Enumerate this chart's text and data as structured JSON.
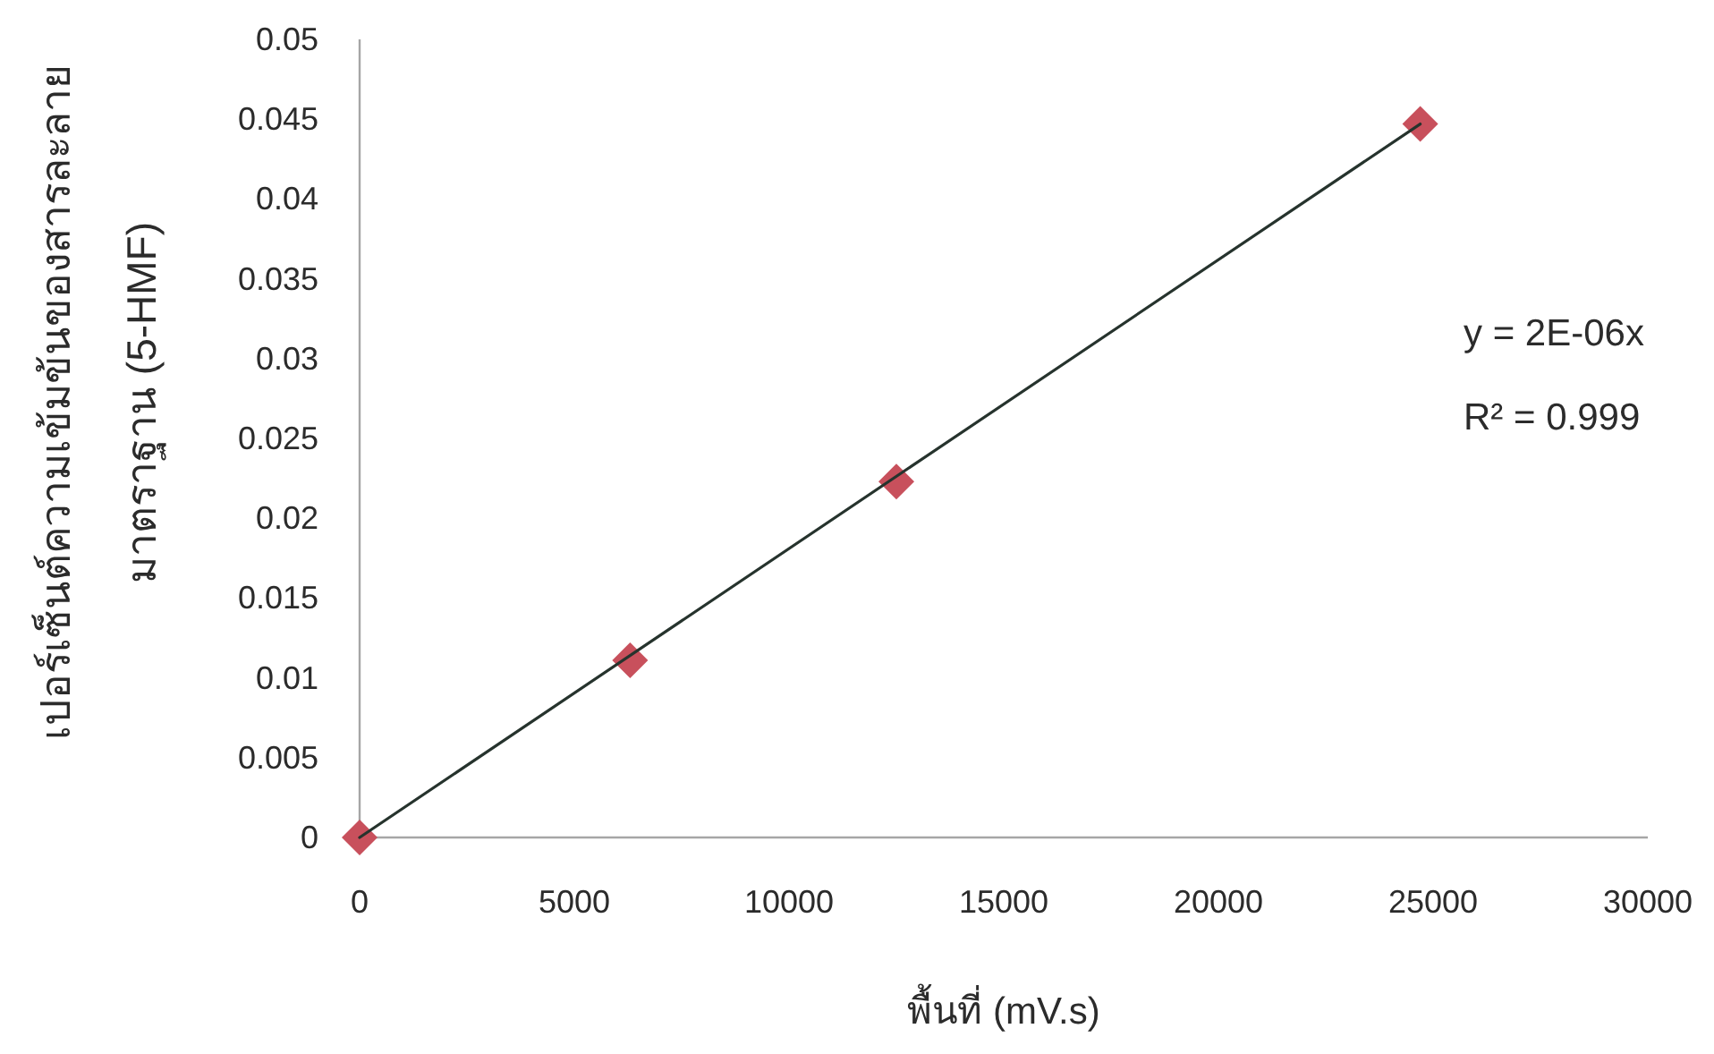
{
  "chart_data": {
    "type": "scatter",
    "xlabel": "พื้นที่ (mV.s)",
    "ylabel": "เปอร์เซ็นต์ความเข้มข้นของสารละลาย\nมาตราฐาน (5-HMF)",
    "xlim": [
      0,
      30000
    ],
    "xticks": [
      0,
      5000,
      10000,
      15000,
      20000,
      25000,
      30000
    ],
    "ylim": [
      0,
      0.05
    ],
    "yticks": [
      0,
      0.005,
      0.01,
      0.015,
      0.02,
      0.025,
      0.03,
      0.035,
      0.04,
      0.045,
      0.05
    ],
    "series": [
      {
        "color": "#c8505c",
        "marker": "diamond",
        "x": [
          0,
          6300,
          12500,
          24700
        ],
        "values": [
          0,
          0.0111,
          0.0223,
          0.0447
        ]
      },
      {
        "type": "line",
        "color": "#26332d",
        "line_style": "solid",
        "x": [
          0,
          24700
        ],
        "values": [
          0,
          0.0447
        ]
      }
    ],
    "annotations": [
      "y = 2E-06x",
      "R² = 0.999"
    ]
  }
}
